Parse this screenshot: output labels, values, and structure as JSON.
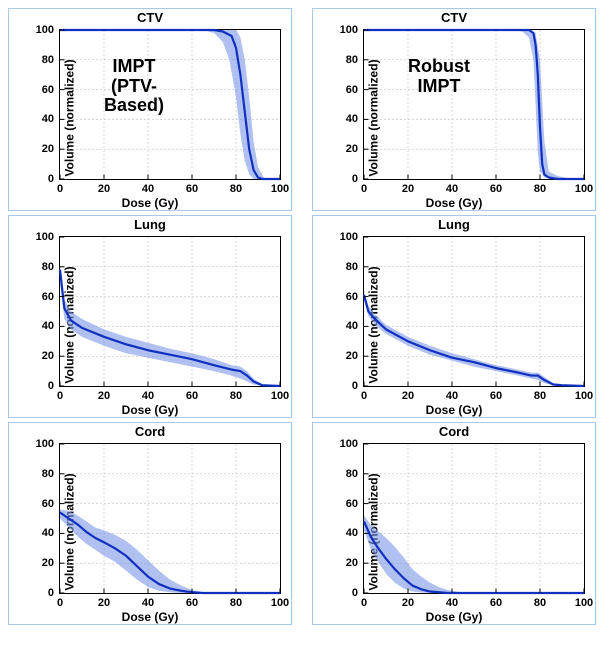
{
  "global": {
    "xlabel": "Dose (Gy)",
    "ylabel": "Volume (normalized)",
    "xlim": [
      0,
      100
    ],
    "ylim": [
      0,
      100
    ],
    "xticks": [
      0,
      20,
      40,
      60,
      80,
      100
    ],
    "yticks": [
      0,
      20,
      40,
      60,
      80,
      100
    ],
    "colors": {
      "border": "#a8c8e8",
      "axis": "#000000",
      "line": "#1030c0",
      "band": "#7a96e8",
      "grid": "#b0b0b0",
      "text": "#000000"
    },
    "line_width": 2.2,
    "band_opacity": 0.6
  },
  "panels": [
    {
      "id": "ctv-left",
      "title": "CTV",
      "annotation": {
        "text": "IMPT\n(PTV-\nBased)",
        "left_pct": 20,
        "top_pct": 18
      },
      "grid": "dashed",
      "band_upper": [
        [
          0,
          100
        ],
        [
          72,
          100
        ],
        [
          76,
          100
        ],
        [
          80,
          100
        ],
        [
          82,
          95
        ],
        [
          84,
          80
        ],
        [
          86,
          55
        ],
        [
          88,
          25
        ],
        [
          90,
          8
        ],
        [
          93,
          0
        ],
        [
          100,
          0
        ]
      ],
      "band_lower": [
        [
          0,
          100
        ],
        [
          65,
          100
        ],
        [
          70,
          98
        ],
        [
          74,
          92
        ],
        [
          77,
          80
        ],
        [
          80,
          55
        ],
        [
          82,
          30
        ],
        [
          84,
          12
        ],
        [
          86,
          3
        ],
        [
          88,
          0
        ],
        [
          100,
          0
        ]
      ],
      "main": [
        [
          0,
          100
        ],
        [
          70,
          100
        ],
        [
          74,
          99
        ],
        [
          78,
          96
        ],
        [
          80,
          88
        ],
        [
          82,
          70
        ],
        [
          84,
          45
        ],
        [
          86,
          20
        ],
        [
          88,
          6
        ],
        [
          90,
          1
        ],
        [
          92,
          0
        ],
        [
          100,
          0
        ]
      ]
    },
    {
      "id": "ctv-right",
      "title": "CTV",
      "annotation": {
        "text": "Robust\nIMPT",
        "left_pct": 20,
        "top_pct": 18
      },
      "grid": "dashed",
      "band_upper": [
        [
          0,
          100
        ],
        [
          72,
          100
        ],
        [
          76,
          100
        ],
        [
          78,
          98
        ],
        [
          80,
          80
        ],
        [
          82,
          25
        ],
        [
          84,
          5
        ],
        [
          88,
          2
        ],
        [
          95,
          0
        ],
        [
          100,
          0
        ]
      ],
      "band_lower": [
        [
          0,
          100
        ],
        [
          68,
          100
        ],
        [
          72,
          99
        ],
        [
          75,
          95
        ],
        [
          77,
          80
        ],
        [
          78,
          50
        ],
        [
          79,
          18
        ],
        [
          80,
          5
        ],
        [
          82,
          1
        ],
        [
          86,
          0
        ],
        [
          100,
          0
        ]
      ],
      "main": [
        [
          0,
          100
        ],
        [
          72,
          100
        ],
        [
          75,
          100
        ],
        [
          77,
          98
        ],
        [
          78,
          90
        ],
        [
          79,
          70
        ],
        [
          80,
          35
        ],
        [
          81,
          10
        ],
        [
          82,
          3
        ],
        [
          84,
          1
        ],
        [
          88,
          0
        ],
        [
          100,
          0
        ]
      ]
    },
    {
      "id": "lung-left",
      "title": "Lung",
      "grid": "dashed",
      "band_upper": [
        [
          0,
          82
        ],
        [
          2,
          58
        ],
        [
          5,
          50
        ],
        [
          10,
          45
        ],
        [
          20,
          38
        ],
        [
          30,
          33
        ],
        [
          40,
          29
        ],
        [
          50,
          25
        ],
        [
          60,
          22
        ],
        [
          70,
          18
        ],
        [
          78,
          14
        ],
        [
          82,
          13
        ],
        [
          85,
          10
        ],
        [
          88,
          5
        ],
        [
          92,
          1
        ],
        [
          100,
          0
        ]
      ],
      "band_lower": [
        [
          0,
          70
        ],
        [
          2,
          45
        ],
        [
          5,
          38
        ],
        [
          10,
          33
        ],
        [
          20,
          27
        ],
        [
          30,
          22
        ],
        [
          40,
          19
        ],
        [
          50,
          16
        ],
        [
          60,
          13
        ],
        [
          70,
          10
        ],
        [
          78,
          7
        ],
        [
          82,
          5
        ],
        [
          85,
          3
        ],
        [
          88,
          1
        ],
        [
          92,
          0
        ],
        [
          100,
          0
        ]
      ],
      "main": [
        [
          0,
          78
        ],
        [
          2,
          52
        ],
        [
          5,
          44
        ],
        [
          10,
          39
        ],
        [
          20,
          33
        ],
        [
          30,
          28
        ],
        [
          40,
          24
        ],
        [
          50,
          21
        ],
        [
          60,
          18
        ],
        [
          70,
          14
        ],
        [
          78,
          11
        ],
        [
          82,
          10
        ],
        [
          85,
          7
        ],
        [
          88,
          3
        ],
        [
          92,
          0.5
        ],
        [
          100,
          0
        ]
      ]
    },
    {
      "id": "lung-right",
      "title": "Lung",
      "grid": "dashed",
      "band_upper": [
        [
          0,
          64
        ],
        [
          2,
          54
        ],
        [
          5,
          48
        ],
        [
          10,
          41
        ],
        [
          20,
          33
        ],
        [
          30,
          27
        ],
        [
          40,
          22
        ],
        [
          50,
          18
        ],
        [
          60,
          14
        ],
        [
          70,
          11
        ],
        [
          76,
          9
        ],
        [
          79,
          9
        ],
        [
          82,
          6
        ],
        [
          86,
          2
        ],
        [
          90,
          1
        ],
        [
          100,
          0
        ]
      ],
      "band_lower": [
        [
          0,
          58
        ],
        [
          2,
          47
        ],
        [
          5,
          41
        ],
        [
          10,
          35
        ],
        [
          20,
          27
        ],
        [
          30,
          21
        ],
        [
          40,
          17
        ],
        [
          50,
          13
        ],
        [
          60,
          10
        ],
        [
          70,
          7
        ],
        [
          76,
          5
        ],
        [
          79,
          4
        ],
        [
          82,
          2
        ],
        [
          86,
          0.5
        ],
        [
          90,
          0
        ],
        [
          100,
          0
        ]
      ],
      "main": [
        [
          0,
          61
        ],
        [
          2,
          50
        ],
        [
          5,
          45
        ],
        [
          10,
          38
        ],
        [
          20,
          30
        ],
        [
          30,
          24
        ],
        [
          40,
          19
        ],
        [
          50,
          16
        ],
        [
          60,
          12
        ],
        [
          70,
          9
        ],
        [
          76,
          7
        ],
        [
          79,
          7
        ],
        [
          82,
          4
        ],
        [
          86,
          1
        ],
        [
          90,
          0.5
        ],
        [
          100,
          0
        ]
      ]
    },
    {
      "id": "cord-left",
      "title": "Cord",
      "grid": "dashed",
      "band_upper": [
        [
          0,
          56
        ],
        [
          4,
          55
        ],
        [
          8,
          52
        ],
        [
          12,
          48
        ],
        [
          16,
          44
        ],
        [
          20,
          42
        ],
        [
          25,
          39
        ],
        [
          30,
          35
        ],
        [
          35,
          29
        ],
        [
          40,
          22
        ],
        [
          45,
          15
        ],
        [
          50,
          9
        ],
        [
          55,
          5
        ],
        [
          60,
          2
        ],
        [
          65,
          0.5
        ],
        [
          70,
          0
        ],
        [
          100,
          0
        ]
      ],
      "band_lower": [
        [
          0,
          50
        ],
        [
          4,
          44
        ],
        [
          8,
          38
        ],
        [
          12,
          33
        ],
        [
          16,
          29
        ],
        [
          20,
          25
        ],
        [
          25,
          21
        ],
        [
          30,
          15
        ],
        [
          35,
          9
        ],
        [
          40,
          4
        ],
        [
          45,
          1.5
        ],
        [
          50,
          0.5
        ],
        [
          55,
          0
        ],
        [
          100,
          0
        ]
      ],
      "main": [
        [
          0,
          54
        ],
        [
          4,
          50
        ],
        [
          8,
          46
        ],
        [
          12,
          41
        ],
        [
          16,
          37
        ],
        [
          20,
          34
        ],
        [
          25,
          30
        ],
        [
          30,
          25
        ],
        [
          35,
          18
        ],
        [
          40,
          11
        ],
        [
          45,
          6
        ],
        [
          50,
          3
        ],
        [
          55,
          1.5
        ],
        [
          60,
          0.5
        ],
        [
          65,
          0
        ],
        [
          100,
          0
        ]
      ]
    },
    {
      "id": "cord-right",
      "title": "Cord",
      "grid": "dashed",
      "band_upper": [
        [
          0,
          52
        ],
        [
          3,
          46
        ],
        [
          6,
          42
        ],
        [
          10,
          37
        ],
        [
          14,
          31
        ],
        [
          18,
          24
        ],
        [
          22,
          16
        ],
        [
          26,
          11
        ],
        [
          30,
          7
        ],
        [
          34,
          4
        ],
        [
          38,
          2
        ],
        [
          42,
          1
        ],
        [
          48,
          0
        ],
        [
          100,
          0
        ]
      ],
      "band_lower": [
        [
          0,
          42
        ],
        [
          3,
          30
        ],
        [
          6,
          22
        ],
        [
          10,
          13
        ],
        [
          14,
          7
        ],
        [
          18,
          3
        ],
        [
          22,
          1
        ],
        [
          26,
          0.3
        ],
        [
          30,
          0
        ],
        [
          100,
          0
        ]
      ],
      "main": [
        [
          0,
          48
        ],
        [
          3,
          38
        ],
        [
          6,
          31
        ],
        [
          10,
          23
        ],
        [
          14,
          16
        ],
        [
          18,
          10
        ],
        [
          22,
          5
        ],
        [
          26,
          2.5
        ],
        [
          30,
          1
        ],
        [
          34,
          0.5
        ],
        [
          38,
          0
        ],
        [
          100,
          0
        ]
      ]
    }
  ]
}
